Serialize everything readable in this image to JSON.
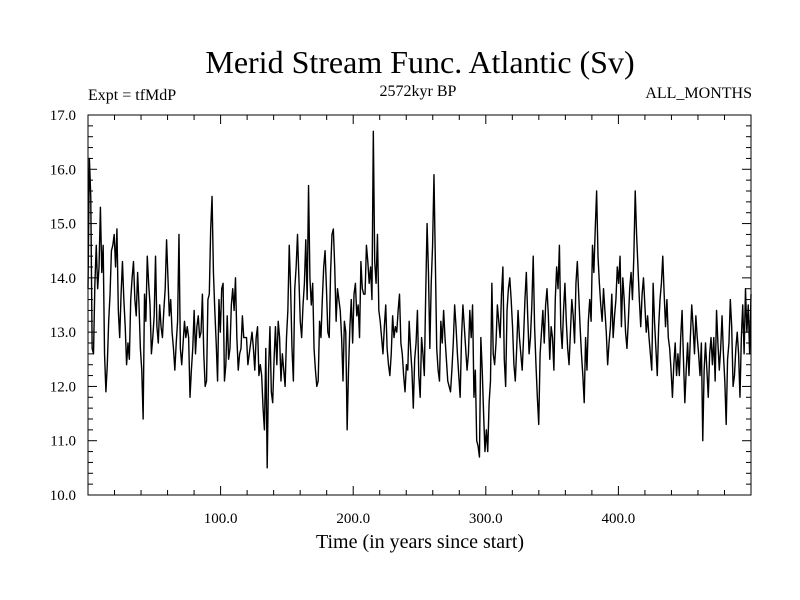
{
  "chart_data": {
    "type": "line",
    "title": "Merid Stream Func. Atlantic (Sv)",
    "subtitle_left": "Expt = tfMdP",
    "subtitle_center": "2572kyr BP",
    "subtitle_right": "ALL_MONTHS",
    "xlabel": "Time (in years since start)",
    "ylabel": "",
    "xlim": [
      0,
      500
    ],
    "ylim": [
      10.0,
      17.0
    ],
    "x_ticks": [
      100,
      200,
      300,
      400
    ],
    "x_tick_labels": [
      "100.0",
      "200.0",
      "300.0",
      "400.0"
    ],
    "y_ticks": [
      10,
      11,
      12,
      13,
      14,
      15,
      16,
      17
    ],
    "y_tick_labels": [
      "10.0",
      "11.0",
      "12.0",
      "13.0",
      "14.0",
      "15.0",
      "16.0",
      "17.0"
    ],
    "grid": false,
    "series": [
      {
        "x_start": 0,
        "x_step": 1,
        "line_color": "#000000",
        "values": [
          13.8,
          16.2,
          15.5,
          12.7,
          12.6,
          13.9,
          14.6,
          13.8,
          14.2,
          15.3,
          14.1,
          14.6,
          12.6,
          11.9,
          12.4,
          13.2,
          13.7,
          14.5,
          14.6,
          14.8,
          14.2,
          14.9,
          13.4,
          12.9,
          13.7,
          14.3,
          13.6,
          13.1,
          12.4,
          12.8,
          12.5,
          13.6,
          14.0,
          14.3,
          13.6,
          13.3,
          14.1,
          13.5,
          12.7,
          12.3,
          11.4,
          13.7,
          13.2,
          14.4,
          13.9,
          13.5,
          12.6,
          12.9,
          13.3,
          14.4,
          13.1,
          12.8,
          13.5,
          13.1,
          12.9,
          13.4,
          13.8,
          14.7,
          14.0,
          13.3,
          13.6,
          13.0,
          12.7,
          12.3,
          12.8,
          13.2,
          14.8,
          12.7,
          12.4,
          12.8,
          13.2,
          12.9,
          13.1,
          12.9,
          11.8,
          12.3,
          12.7,
          13.4,
          12.6,
          13.1,
          13.3,
          12.9,
          13.0,
          13.7,
          12.6,
          12.0,
          12.1,
          13.6,
          13.7,
          14.9,
          15.5,
          14.1,
          13.4,
          12.8,
          12.1,
          13.6,
          13.0,
          13.8,
          13.9,
          12.1,
          12.4,
          13.3,
          12.5,
          12.7,
          13.5,
          13.8,
          13.4,
          14.0,
          12.9,
          12.3,
          12.6,
          12.7,
          13.3,
          12.9,
          12.9,
          12.9,
          12.4,
          12.6,
          12.8,
          13.0,
          12.7,
          12.3,
          12.9,
          13.1,
          12.2,
          12.4,
          12.2,
          11.6,
          11.2,
          12.7,
          10.5,
          12.3,
          13.1,
          11.9,
          11.7,
          12.5,
          13.1,
          12.4,
          13.2,
          12.9,
          12.1,
          12.6,
          12.3,
          12.0,
          12.9,
          13.4,
          14.6,
          13.8,
          12.7,
          12.1,
          13.8,
          14.2,
          14.8,
          14.0,
          13.2,
          12.9,
          13.5,
          13.9,
          14.7,
          13.6,
          15.7,
          14.0,
          13.5,
          13.9,
          12.7,
          12.3,
          12.0,
          12.1,
          13.2,
          12.9,
          13.6,
          14.2,
          14.5,
          13.8,
          13.0,
          12.9,
          14.1,
          14.8,
          14.9,
          14.2,
          13.2,
          13.8,
          13.6,
          13.4,
          12.9,
          12.1,
          13.2,
          13.0,
          11.2,
          12.3,
          13.1,
          13.6,
          12.8,
          13.7,
          13.9,
          13.3,
          13.5,
          12.9,
          14.3,
          13.8,
          13.7,
          13.7,
          14.6,
          14.3,
          13.9,
          14.2,
          13.6,
          16.7,
          14.3,
          13.9,
          14.8,
          13.4,
          13.2,
          12.9,
          12.6,
          13.1,
          13.5,
          12.7,
          12.4,
          12.2,
          12.6,
          13.3,
          12.9,
          13.1,
          13.0,
          13.4,
          13.7,
          12.8,
          12.6,
          12.2,
          11.9,
          12.4,
          12.3,
          13.2,
          12.7,
          12.3,
          11.6,
          12.5,
          12.8,
          13.4,
          12.2,
          11.8,
          12.9,
          12.6,
          12.2,
          13.7,
          15.0,
          14.1,
          12.7,
          13.9,
          14.6,
          15.9,
          14.3,
          12.7,
          12.3,
          12.1,
          13.2,
          12.8,
          13.4,
          12.9,
          12.5,
          12.1,
          12.0,
          11.9,
          12.3,
          12.8,
          13.5,
          13.1,
          12.6,
          12.2,
          11.8,
          12.9,
          13.5,
          13.1,
          12.7,
          12.3,
          12.6,
          13.4,
          12.9,
          13.5,
          11.8,
          12.3,
          11.0,
          10.9,
          10.7,
          12.9,
          12.3,
          11.5,
          10.8,
          11.2,
          10.8,
          11.7,
          12.1,
          13.9,
          12.6,
          12.4,
          12.8,
          13.5,
          13.2,
          12.9,
          13.7,
          14.2,
          12.5,
          12.0,
          13.4,
          13.8,
          14.0,
          13.6,
          13.1,
          12.4,
          12.1,
          12.7,
          13.4,
          12.9,
          12.6,
          12.3,
          12.9,
          13.6,
          14.1,
          13.3,
          12.6,
          12.9,
          13.5,
          14.4,
          13.1,
          12.4,
          11.8,
          11.3,
          12.6,
          13.0,
          13.4,
          12.8,
          13.5,
          13.8,
          13.3,
          12.5,
          13.1,
          12.9,
          12.3,
          13.6,
          14.2,
          13.8,
          14.6,
          13.1,
          12.7,
          13.4,
          13.9,
          13.2,
          12.7,
          12.4,
          13.0,
          13.6,
          13.3,
          12.8,
          13.9,
          14.3,
          13.7,
          13.1,
          12.6,
          12.2,
          11.7,
          12.9,
          12.3,
          13.2,
          13.6,
          13.2,
          14.6,
          14.1,
          14.9,
          15.6,
          14.4,
          13.9,
          13.5,
          13.2,
          13.8,
          13.4,
          13.0,
          12.4,
          12.8,
          13.1,
          13.7,
          12.9,
          13.3,
          13.6,
          14.2,
          13.9,
          14.4,
          13.1,
          14.0,
          13.6,
          13.0,
          12.7,
          13.2,
          13.8,
          14.1,
          13.6,
          14.4,
          15.6,
          14.8,
          14.2,
          13.6,
          13.1,
          13.7,
          14.0,
          13.5,
          13.0,
          13.3,
          12.9,
          12.6,
          12.3,
          13.9,
          13.2,
          12.7,
          12.2,
          13.1,
          13.6,
          13.9,
          14.4,
          13.7,
          13.1,
          13.6,
          12.9,
          12.7,
          12.3,
          11.8,
          12.4,
          12.8,
          12.2,
          12.6,
          12.2,
          12.9,
          13.4,
          12.5,
          11.7,
          12.3,
          12.8,
          12.2,
          12.9,
          13.5,
          13.1,
          12.6,
          13.3,
          12.9,
          12.6,
          12.2,
          12.8,
          11.0,
          12.3,
          12.8,
          12.3,
          11.8,
          12.6,
          12.9,
          12.4,
          12.9,
          12.1,
          13.4,
          12.8,
          12.3,
          12.7,
          13.3,
          12.6,
          12.1,
          11.3,
          12.5,
          12.8,
          13.6,
          13.1,
          12.0,
          12.2,
          12.7,
          13.0,
          12.6,
          11.8,
          12.9,
          13.5,
          12.6,
          13.8,
          13.0,
          13.5,
          12.6,
          13.7
        ]
      }
    ]
  }
}
